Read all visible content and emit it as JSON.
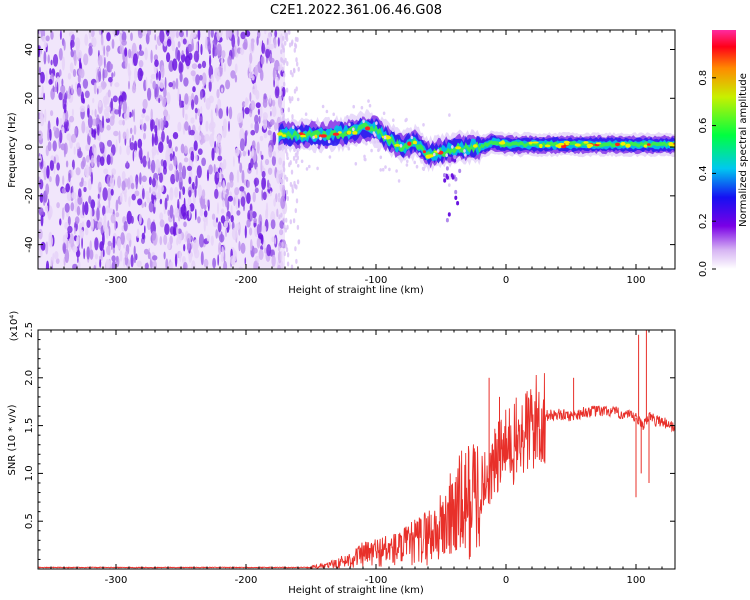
{
  "title": "C2E1.2022.361.06.46.G08",
  "chart_data": [
    {
      "type": "heatmap",
      "title": "C2E1.2022.361.06.46.G08",
      "xlabel": "Height of straight line (km)",
      "ylabel": "Frequency (Hz)",
      "xlim": [
        -360,
        130
      ],
      "ylim": [
        -50,
        48
      ],
      "x_ticks": [
        "-300",
        "-200",
        "-100",
        "0",
        "100"
      ],
      "y_ticks": [
        "40",
        "20",
        "0",
        "-20",
        "-40"
      ],
      "noise_region_x": [
        -360,
        -170
      ],
      "ridge": {
        "x": [
          -175,
          -160,
          -140,
          -120,
          -110,
          -100,
          -90,
          -80,
          -70,
          -60,
          -50,
          -40,
          -30,
          -20,
          -10,
          0,
          20,
          40,
          60,
          80,
          100,
          110,
          130
        ],
        "freq": [
          5,
          5,
          5,
          6,
          8,
          7,
          3,
          0,
          2,
          -3,
          -2,
          -1,
          0,
          0,
          2,
          1,
          1,
          1,
          1,
          1,
          1,
          1,
          1
        ]
      },
      "colorbar": {
        "label": "Normalized spectral amplitude",
        "ticks": [
          "0.0",
          "0.2",
          "0.4",
          "0.6",
          "0.8"
        ],
        "range": [
          0,
          1
        ]
      },
      "grid": false
    },
    {
      "type": "line",
      "xlabel": "Height of straight line (km)",
      "ylabel": "SNR (10 * v/v)",
      "y_multiplier": "(x10⁴)",
      "xlim": [
        -360,
        130
      ],
      "ylim": [
        0,
        2.5
      ],
      "x_ticks": [
        "-300",
        "-200",
        "-100",
        "0",
        "100"
      ],
      "y_ticks": [
        "2.5",
        "2.0",
        "1.5",
        "1.0",
        "0.5"
      ],
      "color": "#e8302a",
      "series": [
        {
          "x": [
            -360,
            -300,
            -250,
            -200,
            -160,
            -140,
            -130,
            -120,
            -110,
            -100,
            -90,
            -80,
            -70,
            -60,
            -50,
            -40,
            -30,
            -25,
            -20,
            -15,
            -10,
            -5,
            0,
            10,
            20,
            30,
            40,
            50,
            60,
            70,
            80,
            90,
            100,
            105,
            110,
            115,
            120,
            130
          ],
          "values": [
            0.01,
            0.01,
            0.01,
            0.01,
            0.01,
            0.03,
            0.06,
            0.1,
            0.15,
            0.18,
            0.2,
            0.22,
            0.28,
            0.35,
            0.42,
            0.6,
            0.7,
            0.75,
            0.85,
            0.95,
            1.05,
            1.2,
            1.25,
            1.35,
            1.5,
            1.6,
            1.62,
            1.6,
            1.64,
            1.65,
            1.65,
            1.62,
            1.58,
            1.5,
            1.6,
            1.55,
            1.55,
            1.48
          ]
        }
      ],
      "spikes": [
        {
          "x": -13,
          "value": 2.0
        },
        {
          "x": -5,
          "value": 1.8
        },
        {
          "x": 52,
          "value": 2.0
        },
        {
          "x": 102,
          "value": 2.45
        },
        {
          "x": 108,
          "value": 2.5
        }
      ],
      "grid": false
    }
  ]
}
